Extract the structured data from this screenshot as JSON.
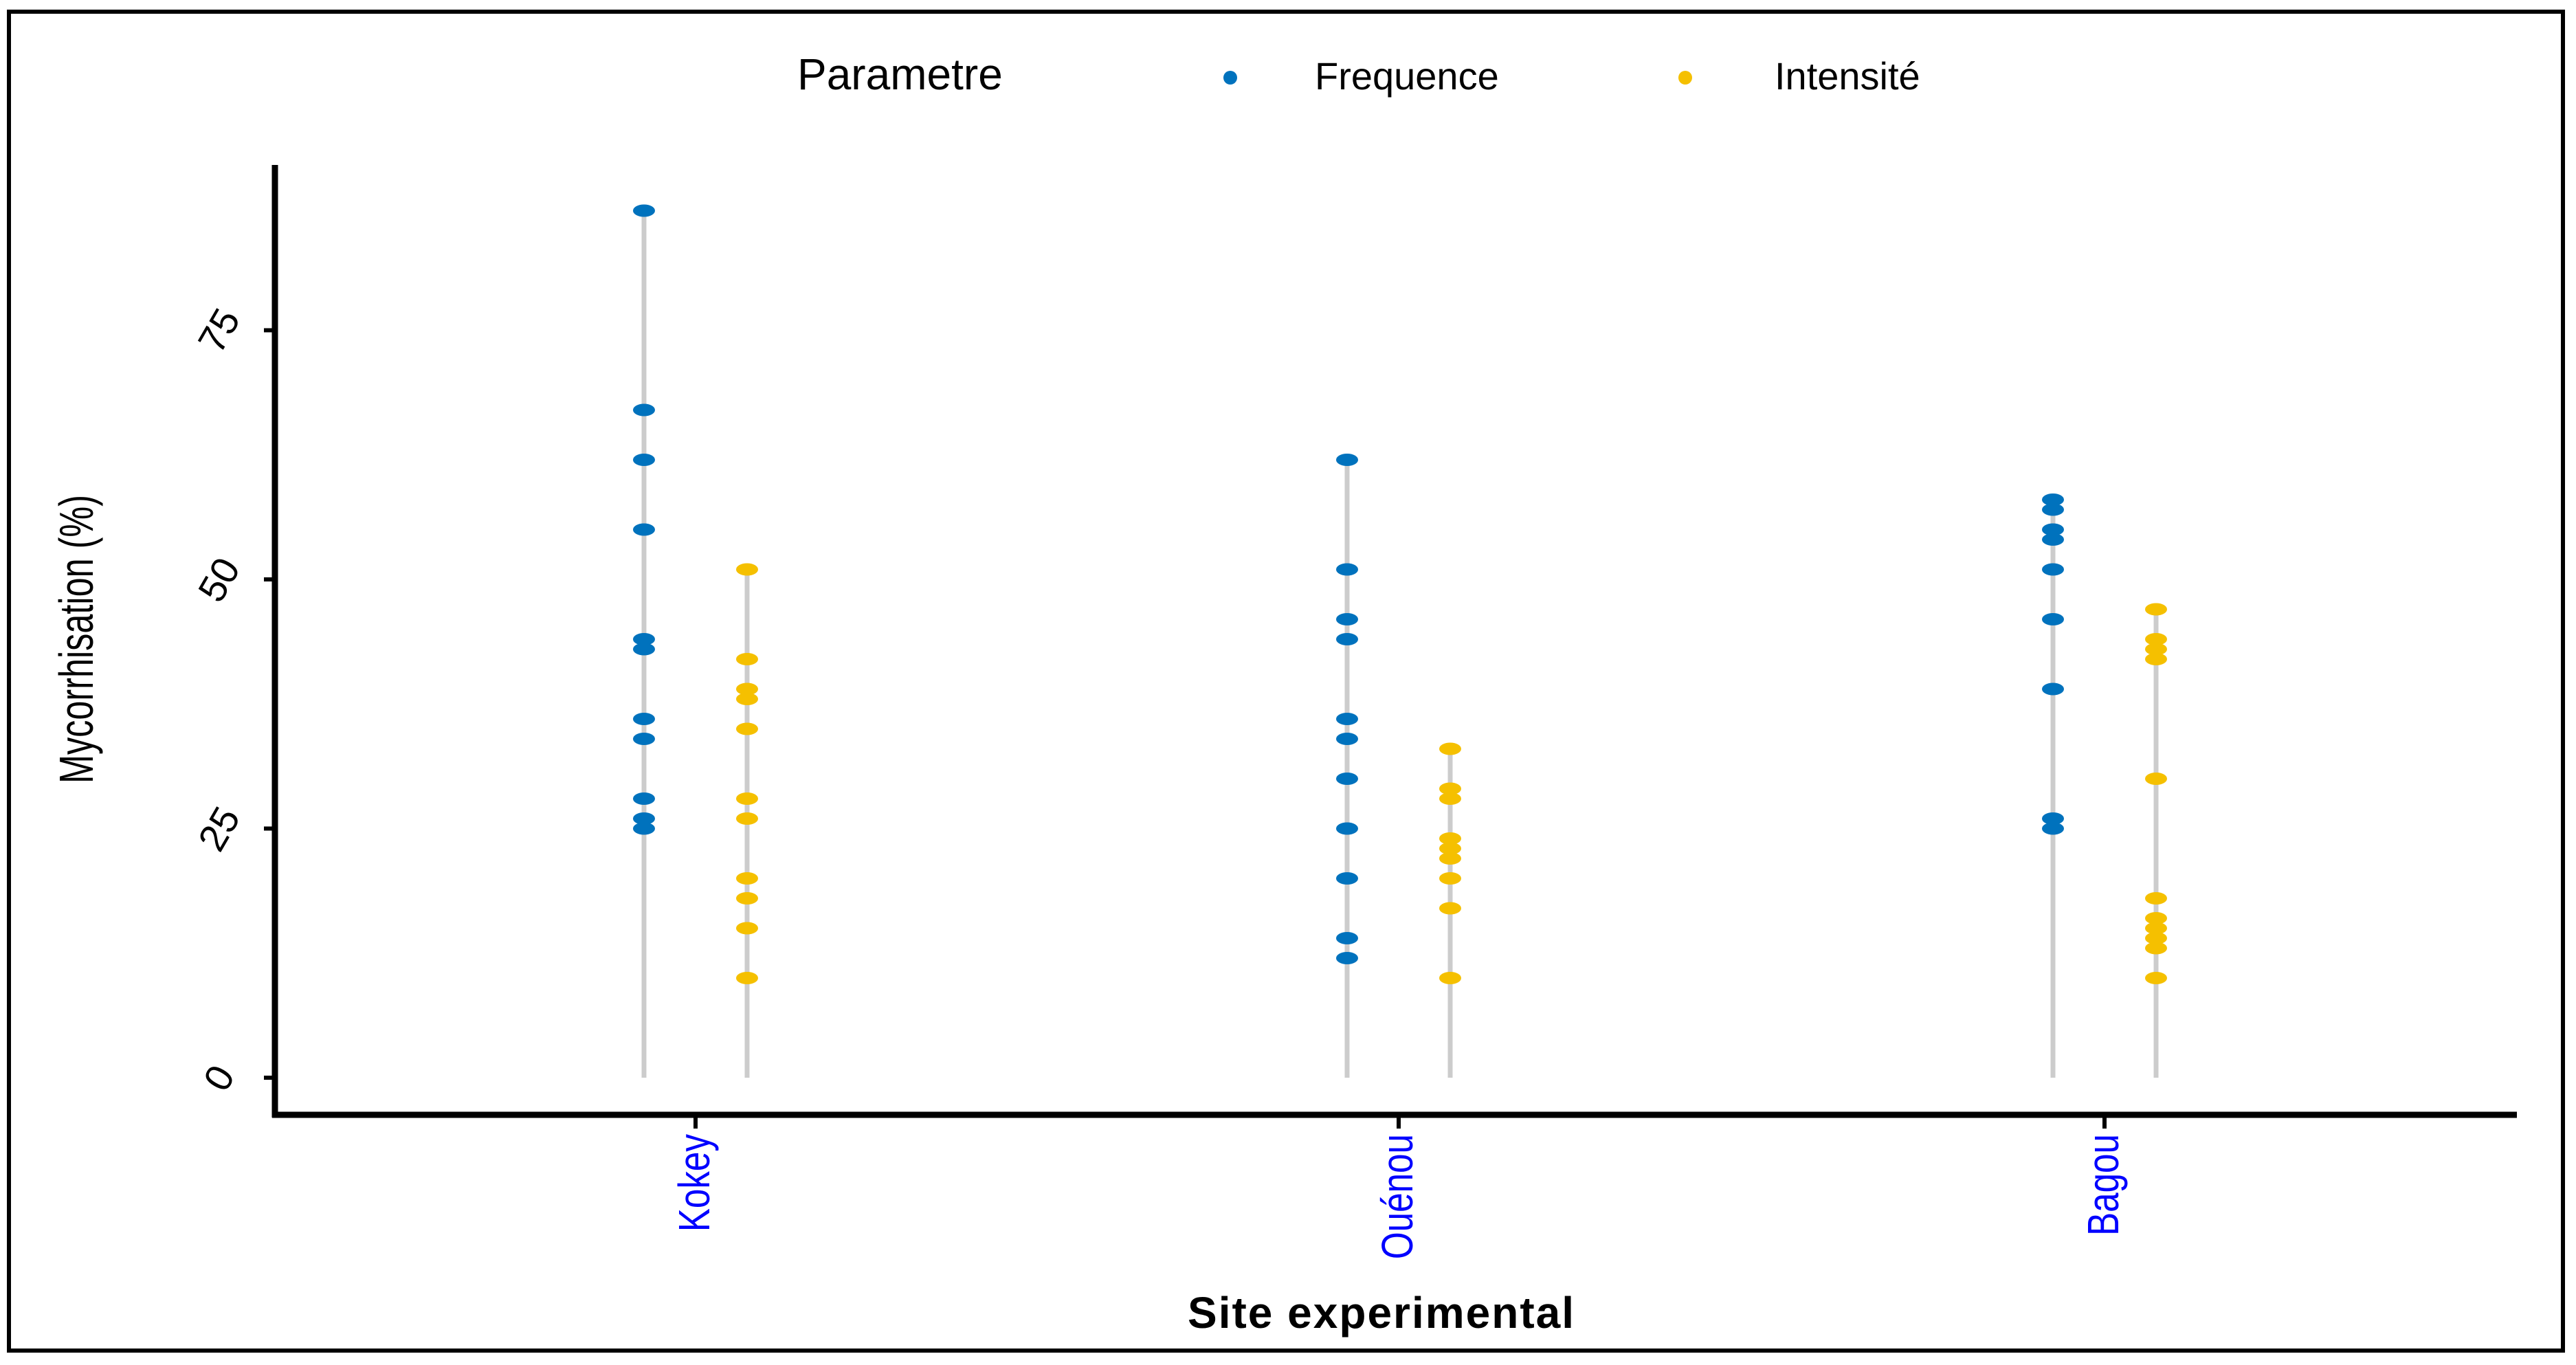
{
  "chart_data": {
    "type": "scatter",
    "title": "",
    "xlabel": "Site experimental",
    "ylabel": "Mycorrhisation (%)",
    "categories": [
      "Kokey",
      "Ouénou",
      "Bagou"
    ],
    "ylim": [
      0,
      90
    ],
    "yticks": [
      0,
      25,
      50,
      75
    ],
    "legend": {
      "title": "Parametre",
      "position": "top"
    },
    "grid": false,
    "series": [
      {
        "name": "Frequence",
        "color": "#0072BD",
        "values": [
          [
            87,
            67,
            62,
            55,
            44,
            43,
            36,
            34,
            28,
            26,
            25
          ],
          [
            62,
            51,
            46,
            44,
            36,
            34,
            30,
            25,
            20,
            14,
            12
          ],
          [
            58,
            57,
            55,
            54,
            51,
            46,
            39,
            26,
            25
          ]
        ]
      },
      {
        "name": "Intensité",
        "color": "#F5C000",
        "values": [
          [
            51,
            42,
            39,
            38,
            35,
            28,
            26,
            20,
            18,
            15,
            10
          ],
          [
            33,
            29,
            28,
            24,
            23,
            22,
            20,
            17,
            10
          ],
          [
            47,
            44,
            43,
            42,
            30,
            18,
            16,
            15,
            14,
            13,
            10
          ]
        ]
      }
    ],
    "stems_color": "#CCCCCC",
    "category_label_color": "#0000FF"
  }
}
